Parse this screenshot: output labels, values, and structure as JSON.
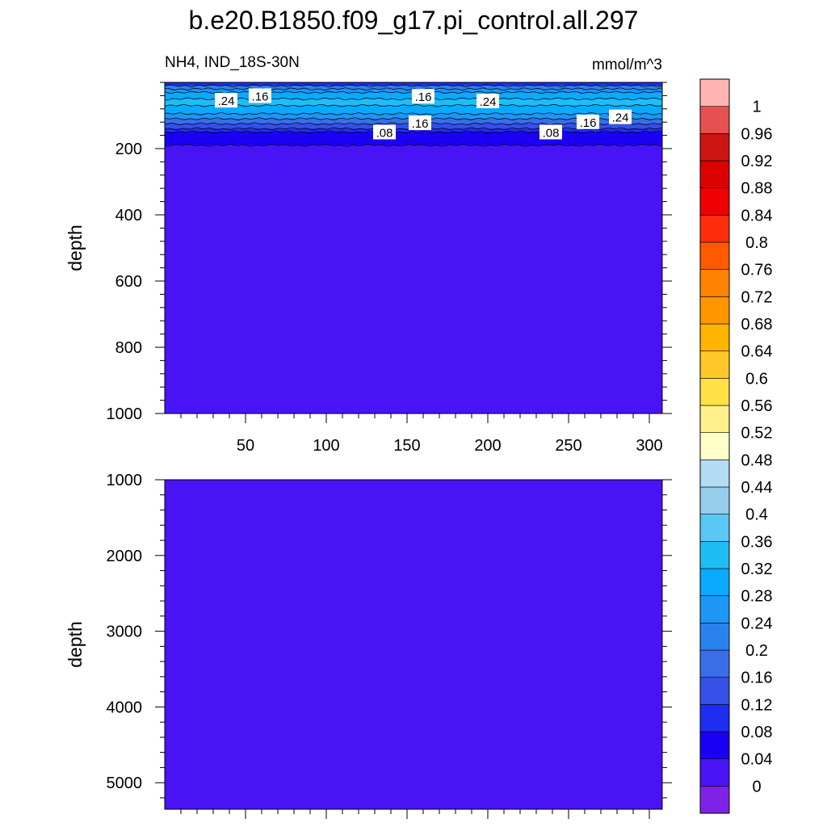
{
  "chart_data": {
    "type": "heatmap",
    "title": "b.e20.B1850.f09_g17.pi_control.all.297",
    "subtitle_left": "NH4, IND_18S-30N",
    "subtitle_right": "mmol/m^3",
    "x": {
      "range": [
        0,
        308
      ],
      "ticks": [
        50,
        100,
        150,
        200,
        250,
        300
      ],
      "tick_labels": [
        "50",
        "100",
        "150",
        "200",
        "250",
        "300"
      ]
    },
    "panels": [
      {
        "name": "upper",
        "ylabel": "depth",
        "ylim": [
          0,
          1000
        ],
        "y_reversed": true,
        "yticks": [
          200,
          400,
          600,
          800,
          1000
        ],
        "ytick_labels": [
          "200",
          "400",
          "600",
          "800",
          "1000"
        ],
        "layers": [
          {
            "from": 0,
            "to": 10,
            "value": 0.1
          },
          {
            "from": 10,
            "to": 20,
            "value": 0.2
          },
          {
            "from": 20,
            "to": 30,
            "value": 0.26
          },
          {
            "from": 30,
            "to": 50,
            "value": 0.3
          },
          {
            "from": 50,
            "to": 70,
            "value": 0.34
          },
          {
            "from": 70,
            "to": 95,
            "value": 0.3
          },
          {
            "from": 95,
            "to": 110,
            "value": 0.26
          },
          {
            "from": 110,
            "to": 125,
            "value": 0.18
          },
          {
            "from": 125,
            "to": 140,
            "value": 0.14
          },
          {
            "from": 140,
            "to": 150,
            "value": 0.1
          },
          {
            "from": 150,
            "to": 190,
            "value": 0.06
          },
          {
            "from": 190,
            "to": 1000,
            "value": 0.02
          }
        ],
        "contour_labels": [
          {
            "text": ".24",
            "x": 38,
            "depth": 54
          },
          {
            "text": ".16",
            "x": 59,
            "depth": 40
          },
          {
            "text": ".16",
            "x": 160,
            "depth": 42
          },
          {
            "text": ".24",
            "x": 200,
            "depth": 56
          },
          {
            "text": ".08",
            "x": 136,
            "depth": 150
          },
          {
            "text": ".16",
            "x": 158,
            "depth": 122
          },
          {
            "text": ".08",
            "x": 239,
            "depth": 150
          },
          {
            "text": ".16",
            "x": 262,
            "depth": 119
          },
          {
            "text": ".24",
            "x": 282,
            "depth": 104
          }
        ]
      },
      {
        "name": "lower",
        "ylabel": "depth",
        "ylim": [
          1000,
          5350
        ],
        "y_reversed": true,
        "yticks": [
          1000,
          2000,
          3000,
          4000,
          5000
        ],
        "ytick_labels": [
          "1000",
          "2000",
          "3000",
          "4000",
          "5000"
        ],
        "layers": [
          {
            "from": 1000,
            "to": 5350,
            "value": 0.02
          }
        ],
        "contour_labels": []
      }
    ],
    "colorbar": {
      "levels": [
        0,
        0.04,
        0.08,
        0.12,
        0.16,
        0.2,
        0.24,
        0.28,
        0.32,
        0.36,
        0.4,
        0.44,
        0.48,
        0.52,
        0.56,
        0.6,
        0.64,
        0.68,
        0.72,
        0.76,
        0.8,
        0.84,
        0.88,
        0.92,
        0.96,
        1
      ],
      "level_labels": [
        "0",
        "0.04",
        "0.08",
        "0.12",
        "0.16",
        "0.2",
        "0.24",
        "0.28",
        "0.32",
        "0.36",
        "0.4",
        "0.44",
        "0.48",
        "0.52",
        "0.56",
        "0.6",
        "0.64",
        "0.68",
        "0.72",
        "0.76",
        "0.8",
        "0.84",
        "0.88",
        "0.92",
        "0.96",
        "1"
      ],
      "colors": [
        "#7e22e8",
        "#4914f5",
        "#1a00f5",
        "#1e2ef0",
        "#3450e6",
        "#3a6ee8",
        "#2a82ef",
        "#1d96f5",
        "#09aaff",
        "#1ebef5",
        "#5ac8f5",
        "#96cdeb",
        "#b4dcf2",
        "#ffffc8",
        "#fff08c",
        "#ffe146",
        "#ffc828",
        "#ffb400",
        "#ff9600",
        "#ff8200",
        "#ff5a00",
        "#ff2d0a",
        "#f00000",
        "#dc0000",
        "#cd1414",
        "#e65050",
        "#ffb4b4"
      ]
    }
  }
}
